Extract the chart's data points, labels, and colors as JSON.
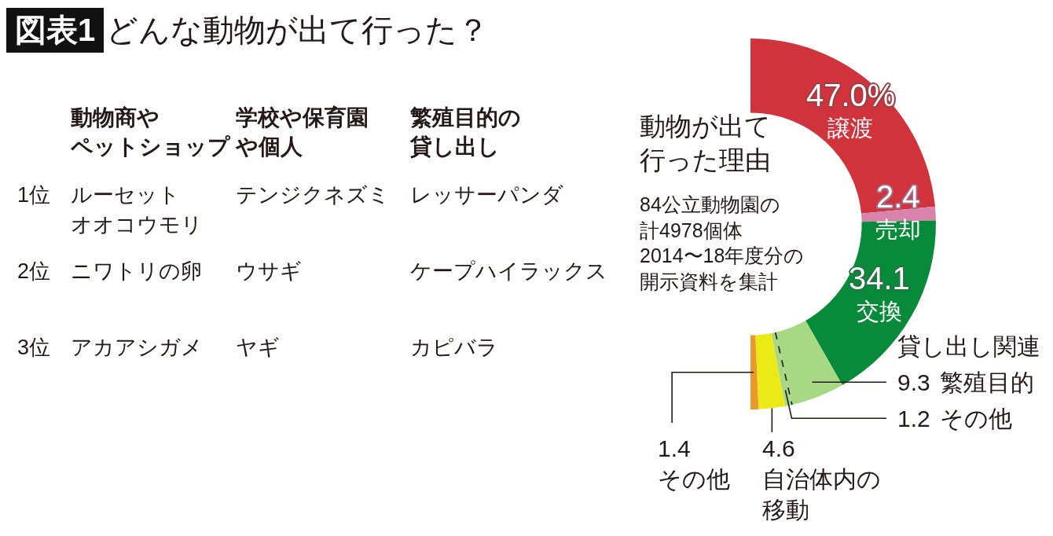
{
  "chart_data": [
    {
      "type": "other",
      "title": "図表1 どんな動物が出て行った？",
      "categories": [
        "動物商やペットショップ",
        "学校や保育園や個人",
        "繁殖目的の貸し出し"
      ],
      "y_categories": [
        "1位",
        "2位",
        "3位"
      ],
      "cell_labels": [
        [
          "ルーセットオオコウモリ",
          "テンジクネズミ",
          "レッサーパンダ"
        ],
        [
          "ニワトリの卵",
          "ウサギ",
          "ケープハイラックス"
        ],
        [
          "アカアシガメ",
          "ヤギ",
          "カピバラ"
        ]
      ]
    },
    {
      "type": "donut",
      "title": "動物が出て行った理由",
      "subtitle": "84公立動物園の計4978個体2014〜18年度分の開示資料を集計",
      "categories": [
        "譲渡",
        "売却",
        "交換",
        "繁殖目的",
        "その他",
        "自治体内の移動",
        "その他"
      ],
      "values": [
        47.0,
        2.4,
        34.1,
        9.3,
        1.2,
        4.6,
        1.4
      ],
      "value_labels": [
        "47.0%",
        "2.4",
        "34.1",
        "9.3",
        "1.2",
        "4.6",
        "1.4"
      ],
      "colors": [
        "#d1333c",
        "#d883ab",
        "#078a3a",
        "#a7d884",
        "#a7d884",
        "#ebe916",
        "#e89b2b"
      ],
      "annotations": [
        "貸し出し関連"
      ]
    }
  ]
}
